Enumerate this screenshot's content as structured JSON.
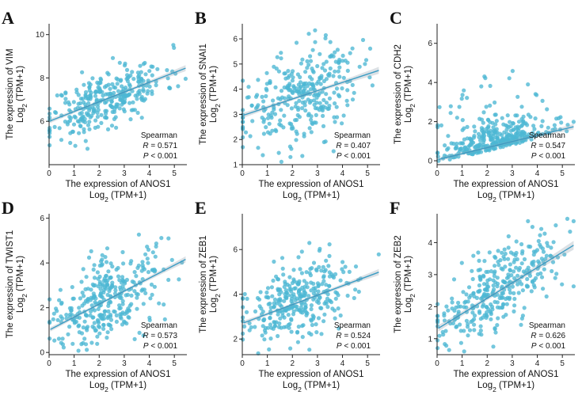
{
  "figure": {
    "stat_method": "Spearman",
    "r_label": "R",
    "p_label": "P",
    "x_title": "The expression of ANOS1",
    "x_sub_prefix": "Log",
    "x_sub_base": "2",
    "x_sub_suffix": " (TPM+1)",
    "y_title_prefix": "The expression of ",
    "y_sub_prefix": "Log",
    "y_sub_base": "2",
    "y_sub_suffix": " (TPM+1)"
  },
  "chart_data": [
    {
      "letter": "A",
      "type": "scatter",
      "gene": "VIM",
      "r": "= 0.571",
      "p": "< 0.001",
      "xlim": [
        0,
        5.5
      ],
      "ylim": [
        4.0,
        10.5
      ],
      "xticks": [
        0,
        1,
        2,
        3,
        4,
        5
      ],
      "yticks": [
        6,
        8,
        10
      ],
      "fit": {
        "intercept": 6.0,
        "slope": 0.45
      },
      "noise": 0.65,
      "n": 320,
      "seed": 11
    },
    {
      "letter": "B",
      "type": "scatter",
      "gene": "SNAI1",
      "r": "= 0.407",
      "p": "< 0.001",
      "xlim": [
        0,
        5.5
      ],
      "ylim": [
        1.0,
        6.6
      ],
      "xticks": [
        0,
        1,
        2,
        3,
        4,
        5
      ],
      "yticks": [
        1,
        2,
        3,
        4,
        5,
        6
      ],
      "fit": {
        "intercept": 2.95,
        "slope": 0.33
      },
      "noise": 0.95,
      "n": 320,
      "seed": 23
    },
    {
      "letter": "C",
      "type": "scatter",
      "gene": "CDH2",
      "r": "= 0.547",
      "p": "< 0.001",
      "xlim": [
        0,
        5.5
      ],
      "ylim": [
        -0.2,
        7.0
      ],
      "xticks": [
        0,
        1,
        2,
        3,
        4,
        5
      ],
      "yticks": [
        0,
        2,
        4,
        6
      ],
      "fit": {
        "intercept": 0.05,
        "slope": 0.31
      },
      "noise": 0.55,
      "n": 360,
      "seed": 37,
      "skew": true
    },
    {
      "letter": "D",
      "type": "scatter",
      "gene": "TWIST1",
      "r": "= 0.573",
      "p": "< 0.001",
      "xlim": [
        0,
        5.5
      ],
      "ylim": [
        -0.1,
        6.2
      ],
      "xticks": [
        0,
        1,
        2,
        3,
        4,
        5
      ],
      "yticks": [
        0,
        2,
        4,
        6
      ],
      "fit": {
        "intercept": 1.0,
        "slope": 0.58
      },
      "noise": 0.95,
      "n": 340,
      "seed": 41
    },
    {
      "letter": "E",
      "type": "scatter",
      "gene": "ZEB1",
      "r": "= 0.524",
      "p": "< 0.001",
      "xlim": [
        0,
        5.5
      ],
      "ylim": [
        1.3,
        7.6
      ],
      "xticks": [
        0,
        1,
        2,
        3,
        4,
        5
      ],
      "yticks": [
        2,
        4,
        6
      ],
      "fit": {
        "intercept": 2.7,
        "slope": 0.42
      },
      "noise": 0.9,
      "n": 330,
      "seed": 53
    },
    {
      "letter": "F",
      "type": "scatter",
      "gene": "ZEB2",
      "r": "= 0.626",
      "p": "< 0.001",
      "xlim": [
        0,
        5.5
      ],
      "ylim": [
        0.5,
        4.9
      ],
      "xticks": [
        0,
        1,
        2,
        3,
        4,
        5
      ],
      "yticks": [
        1,
        2,
        3,
        4
      ],
      "fit": {
        "intercept": 1.3,
        "slope": 0.48
      },
      "noise": 0.6,
      "n": 340,
      "seed": 67
    }
  ]
}
